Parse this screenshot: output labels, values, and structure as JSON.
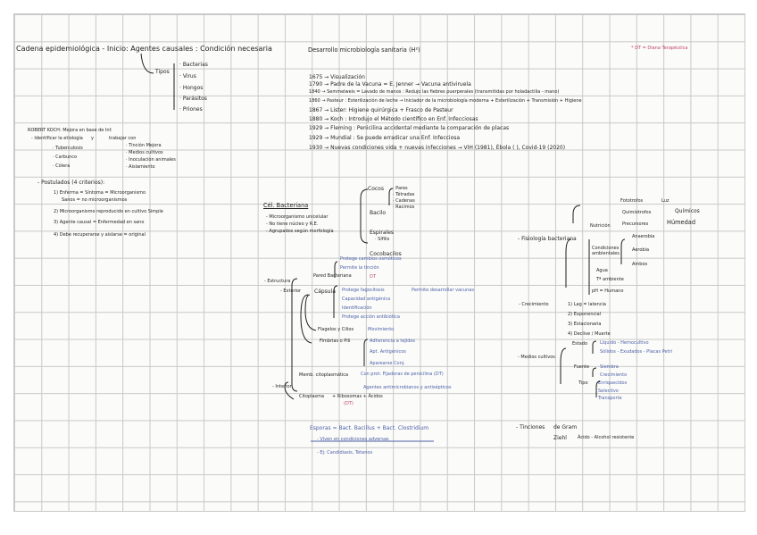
{
  "colors": {
    "ink": "#1e1e1e",
    "blue": "#4b5fa8",
    "pink": "#c0436b",
    "grid": "#c9c9c9",
    "paper": "#fbfbf9"
  },
  "left": {
    "title": "Cadena epidemiológica - Inicio: Agentes causales : Condición necesaria",
    "tipos": "Tipos",
    "tipos_items": [
      "· Bacterias",
      "· Virus",
      "· Hongos",
      "· Parásitos",
      "· Priones"
    ],
    "koch_title": "ROBERT KOCH: Mejora en base de Inf.",
    "koch_sub": [
      "- Identificar la etiología",
      "y",
      "trabajar con"
    ],
    "koch_list_a": [
      "· Tuberculosis",
      "· Carbunco",
      "· Cólera"
    ],
    "koch_list_b": [
      "· Tinción Mejora",
      "· Medios cultivos",
      "· Inoculación animales",
      "· Aislamiento"
    ],
    "postulados_title": "- Postulados (4 criterios):",
    "postulados": [
      "1) Enferma = Síntoma = Microorganismo",
      "Sanos = no microorganismos",
      "2) Microorganismo reproducido en cultivo Simple",
      "3) Agente causal = Enfermedad en sano",
      "4) Debe recuperarse y aislarse = original"
    ]
  },
  "middle": {
    "title": "Desarrollo microbiología sanitaria (H²)",
    "timeline": [
      "1675 → Visualización",
      "1790 → Padre de la Vacuna = E. Jenner → Vacuna antiviruela",
      "1840 → Semmelweis = Lavado de manos : Redujo las fiebres puerperales (transmitidas por holadactilia - mano)",
      "1860 → Pasteur : Esterilización de leche → Iniciador de la microbiología moderna + Esterilización + Transmisión + Higiene",
      "1867 → Lister: Higiene quirúrgica + Frasco de Pasteur",
      "1880 → Koch : Introdujo el Método científico en Enf. Infecciosas",
      "1929 → Fleming : Penicilina accidental mediante la comparación de placas",
      "1929 → Mundial : Se puede erradicar una Enf. Infecciosa",
      "1930 → Nuevas condiciones vida + nuevas infecciones → VIH (1981), Ébola (   ), Covid-19 (2020)"
    ]
  },
  "legend": "* DT = Diana Terapéutica",
  "cell": {
    "title": "Cél. Bacteriana",
    "notes": [
      "- Microorganismo unicelular",
      "- No tiene núcleo y R.E.",
      "- Agrupados según morfología"
    ],
    "estructura": "- Estructura",
    "exterior": "- Exterior",
    "interior": "- Interior",
    "pared": "Pared Bacteriana",
    "pared_items": [
      "Protege cambios osmóticos",
      "Permite la tinción",
      "DT"
    ],
    "capsula": "Cápsula",
    "capsula_items": [
      "Protege fagocitosis",
      "Capacidad antigénica",
      "Identificación",
      "Protege acción antibiótica"
    ],
    "capsula_extra": "Permite desarrollar vacunas",
    "flagelos": "Flagelos y Cilios",
    "flagelos_item": "Movimiento",
    "fimbrias": "Fimbrias o Pili",
    "fimbrias_items": [
      "Adherencia a tejidos",
      "Apt. Antigénicos",
      "Aparearse Conj."
    ],
    "membrana": "Memb. citoplasmática",
    "membrana_item": "Con prot. Fijadoras de penicilina (DT)",
    "citoplasma": "Citoplasma",
    "citoplasma_item": "+ Ribosomas + Ácidos",
    "citoplasma_extra": "Agentes antimicrobianos y antisépticos",
    "citoplasma_dt": "(DT)",
    "esporas": "Esporas = Bact. Bacillus + Bact. Clostridium",
    "esporas_items": [
      "- Viven en condiciones adversas",
      "- Ej: Candidiasis, Tétanos"
    ]
  },
  "morph": {
    "cocos": "Cocos",
    "cocos_items": [
      "· Pares",
      "· Tétradas",
      "· Cadenas",
      "· Racimos"
    ],
    "bacilo": "Bacilo",
    "espirales": "Espirales",
    "espirales_item": "· Sífilis",
    "cocobacilos": "Cocobacilos"
  },
  "right": {
    "fisiologia": "- Fisiología bacteriana",
    "nutricion": "Nutrición",
    "fototrofos": "Fototrofos",
    "fototrofos_item": "Luz",
    "quimiotrofos": "Quimiotrofos",
    "quimicos": "Químicos",
    "precursores": "Precursores",
    "humedad": "Húmedad",
    "condiciones": "Condiciones ambientales",
    "anaerobia": "Anaerobia",
    "aerobia": "Aerobia",
    "ambos": "Ambos",
    "agua": "Agua",
    "temp": "Tª ambiente",
    "ph": "pH = Humano",
    "crecimiento": "- Crecimiento",
    "crec_items": [
      "1) Lag = latencia",
      "2) Exponencial",
      "3) Estacionaria",
      "4) Declive / Muerte"
    ],
    "medios": "- Medios cultivos",
    "estado": "Estado",
    "estado_items": [
      "Líquido - Hemocultivo",
      "Sólidos - Exudados - Placas Petri"
    ],
    "fuente": "Fuente",
    "fuente_items": [
      "Siembra",
      "Crecimiento"
    ],
    "tipo": "Tipo",
    "tipo_items": [
      "Enriquecidos",
      "Selectivo",
      "Transporte"
    ],
    "tinciones": "- Tinciones",
    "gram": "de Gram",
    "ziehl": "Ziehl",
    "ziehl_item": "Ácido - Alcohol resistente"
  }
}
